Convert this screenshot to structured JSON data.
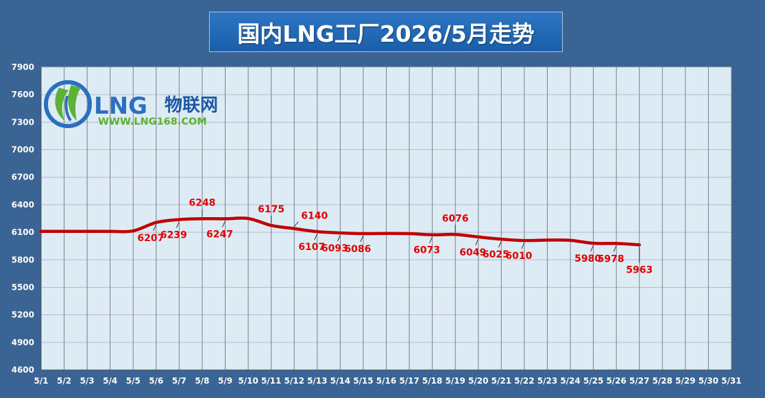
{
  "title": "国内LNG工厂2026/5月走势",
  "logo": {
    "brand_prefix": "LNG",
    "brand_suffix": "物联网",
    "url": "WWW.LNG168.COM",
    "colors": {
      "blue": "#2a6fc0",
      "green": "#5cb234"
    }
  },
  "colors": {
    "background": "#3a6494",
    "plot_area": "#dcebf4",
    "line": "#c00000",
    "label": "#e00000"
  },
  "chart_data": {
    "type": "line",
    "title": "国内LNG工厂2026/5月走势",
    "xlabel": "",
    "ylabel": "",
    "ylim": [
      4600,
      7900
    ],
    "y_ticks": [
      7900,
      7600,
      7300,
      7000,
      6700,
      6400,
      6100,
      5800,
      5500,
      5200,
      4900,
      4600
    ],
    "categories": [
      "5/1",
      "5/2",
      "5/3",
      "5/4",
      "5/5",
      "5/6",
      "5/7",
      "5/8",
      "5/9",
      "5/10",
      "5/11",
      "5/12",
      "5/13",
      "5/14",
      "5/15",
      "5/16",
      "5/17",
      "5/18",
      "5/19",
      "5/20",
      "5/21",
      "5/22",
      "5/23",
      "5/24",
      "5/25",
      "5/26",
      "5/27",
      "5/28",
      "5/29",
      "5/30",
      "5/31"
    ],
    "grid": true,
    "series": [
      {
        "values": [
          6110,
          6110,
          6110,
          6110,
          6115,
          6207,
          6239,
          6248,
          6247,
          6250,
          6175,
          6140,
          6107,
          6093,
          6086,
          6088,
          6086,
          6073,
          6076,
          6049,
          6025,
          6010,
          6015,
          6012,
          5980,
          5978,
          5963,
          null,
          null,
          null,
          null
        ]
      }
    ],
    "labels": [
      {
        "x": "5/6",
        "value": 6207,
        "text": "6207",
        "pos": "below"
      },
      {
        "x": "5/7",
        "value": 6239,
        "text": "6239",
        "pos": "below"
      },
      {
        "x": "5/8",
        "value": 6248,
        "text": "6248",
        "pos": "above"
      },
      {
        "x": "5/9",
        "value": 6247,
        "text": "6247",
        "pos": "below"
      },
      {
        "x": "5/11",
        "value": 6175,
        "text": "6175",
        "pos": "above"
      },
      {
        "x": "5/12",
        "value": 6140,
        "text": "6140",
        "pos": "above-right"
      },
      {
        "x": "5/13",
        "value": 6107,
        "text": "6107",
        "pos": "below"
      },
      {
        "x": "5/14",
        "value": 6093,
        "text": "6093",
        "pos": "below"
      },
      {
        "x": "5/15",
        "value": 6086,
        "text": "6086",
        "pos": "below"
      },
      {
        "x": "5/18",
        "value": 6073,
        "text": "6073",
        "pos": "below"
      },
      {
        "x": "5/19",
        "value": 6076,
        "text": "6076",
        "pos": "above"
      },
      {
        "x": "5/20",
        "value": 6049,
        "text": "6049",
        "pos": "below"
      },
      {
        "x": "5/21",
        "value": 6025,
        "text": "6025",
        "pos": "below"
      },
      {
        "x": "5/22",
        "value": 6010,
        "text": "6010",
        "pos": "below"
      },
      {
        "x": "5/25",
        "value": 5980,
        "text": "5980",
        "pos": "below"
      },
      {
        "x": "5/26",
        "value": 5978,
        "text": "5978",
        "pos": "below"
      },
      {
        "x": "5/27",
        "value": 5963,
        "text": "5963",
        "pos": "below-far"
      }
    ]
  }
}
